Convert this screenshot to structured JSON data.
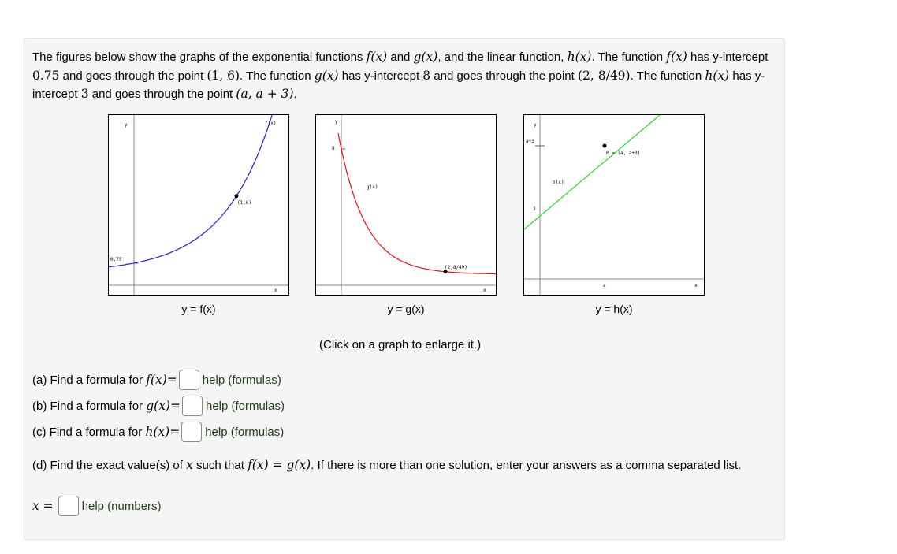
{
  "intro": {
    "s1": "The figures below show the graphs of the exponential functions ",
    "f_of_x": "f(x)",
    "and1": " and ",
    "g_of_x": "g(x)",
    "s2": ", and the linear function, ",
    "h_of_x": "h(x)",
    "s3": ". The function ",
    "f2": "f(x)",
    "s4": " has y-intercept ",
    "f_intercept": "0.75",
    "s5": " and goes through the point ",
    "f_point": "(1, 6)",
    "s6": ". The function ",
    "g2": "g(x)",
    "s7": " has y-intercept ",
    "g_intercept": "8",
    "s8": " and goes through the point ",
    "g_point": "(2, 8/49)",
    "s9": ". The function ",
    "h2": "h(x)",
    "s10": " has y-intercept ",
    "h_intercept": "3",
    "s11": " and goes through the point ",
    "h_point": "(a, a + 3)",
    "s12": "."
  },
  "graphs": {
    "f": {
      "caption": "y = f(x)",
      "ylabel": "y",
      "xlabel": "x",
      "func_label": "f(x)",
      "intercept_label": "0.75",
      "point_label": "(1,6)",
      "curve_color": "#2222dd"
    },
    "g": {
      "caption": "y = g(x)",
      "ylabel": "y",
      "xlabel": "x",
      "func_label": "g(x)",
      "intercept_label": "8",
      "point_label": "(2,8/49)",
      "curve_color": "#ee1111"
    },
    "h": {
      "caption": "y = h(x)",
      "ylabel": "y",
      "xlabel": "x",
      "func_label": "h(x)",
      "intercept_label": "3",
      "aplus3_label": "a+3",
      "a_label": "a",
      "point_label": "P = (a, a+3)",
      "curve_color": "#22dd22"
    }
  },
  "click_note": "(Click on a graph to enlarge it.)",
  "questions": {
    "a": {
      "prefix": "(a) Find a formula for ",
      "func": "f(x)",
      "eq": " =",
      "value": "",
      "help": "help (formulas)"
    },
    "b": {
      "prefix": "(b) Find a formula for ",
      "func": "g(x)",
      "eq": " =",
      "value": "",
      "help": "help (formulas)"
    },
    "c": {
      "prefix": "(c) Find a formula for ",
      "func": "h(x)",
      "eq": " =",
      "value": "",
      "help": "help (formulas)"
    },
    "d": {
      "s1": "(d) Find the exact value(s) of ",
      "var": "x",
      "s2": " such that ",
      "eq": "f(x) = g(x)",
      "s3": ". If there is more than one solution, enter your answers as a comma separated list.",
      "answer_prefix": "x =",
      "value": "",
      "help": "help (numbers)"
    }
  }
}
